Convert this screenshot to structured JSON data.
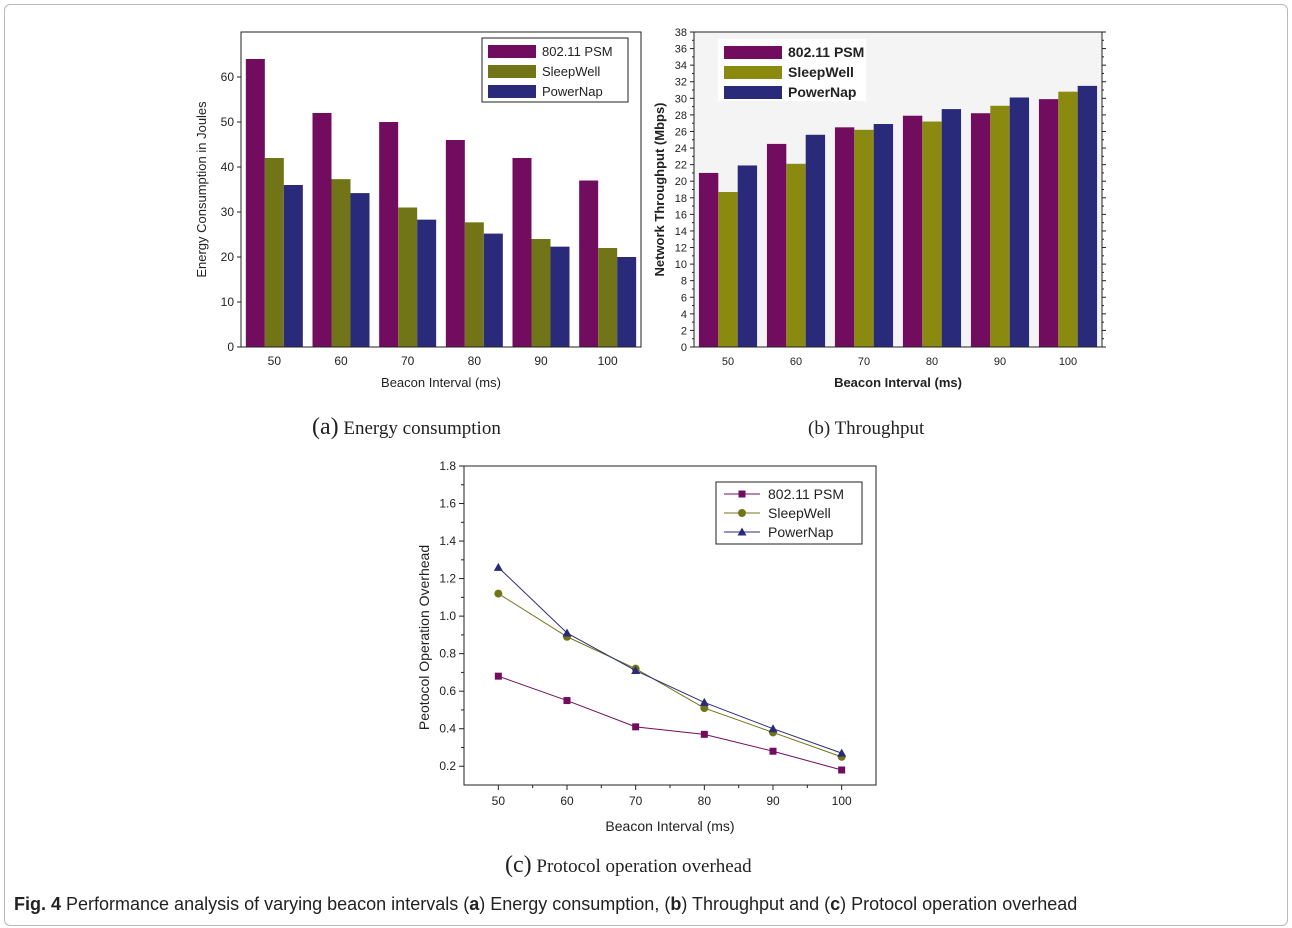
{
  "chart_data": [
    {
      "type": "bar",
      "categories": [
        "50",
        "60",
        "70",
        "80",
        "90",
        "100"
      ],
      "series": [
        {
          "name": "802.11 PSM",
          "values": [
            64,
            52,
            50,
            46,
            42,
            37
          ],
          "color": "#720c5e"
        },
        {
          "name": "SleepWell",
          "values": [
            42,
            37.3,
            31,
            27.7,
            24,
            22
          ],
          "color": "#727517"
        },
        {
          "name": "PowerNap",
          "values": [
            36,
            34.2,
            28.3,
            25.2,
            22.3,
            20
          ],
          "color": "#2a2a7a"
        }
      ],
      "xlabel": "Beacon Interval (ms)",
      "ylabel": "Energy Consumption in Joules",
      "ylim": [
        0,
        70
      ],
      "yticks": [
        "0",
        "10",
        "20",
        "30",
        "40",
        "50",
        "60"
      ],
      "legend": "top-right",
      "subcaption": {
        "letter": "(a)",
        "text": "Energy consumption"
      }
    },
    {
      "type": "bar",
      "categories": [
        "50",
        "60",
        "70",
        "80",
        "90",
        "100"
      ],
      "series": [
        {
          "name": "802.11 PSM",
          "values": [
            21,
            24.5,
            26.5,
            27.9,
            28.2,
            29.9
          ],
          "color": "#720c5e"
        },
        {
          "name": "SleepWell",
          "values": [
            18.7,
            22.1,
            26.2,
            27.2,
            29.1,
            30.8
          ],
          "color": "#8a8a10"
        },
        {
          "name": "PowerNap",
          "values": [
            21.9,
            25.6,
            26.9,
            28.7,
            30.1,
            31.5
          ],
          "color": "#2a2a7a"
        }
      ],
      "xlabel": "Beacon Interval (ms)",
      "ylabel": "Network Throughput (Mbps)",
      "ylim": [
        0,
        38
      ],
      "yticks": [
        "0",
        "2",
        "4",
        "6",
        "8",
        "10",
        "12",
        "14",
        "16",
        "18",
        "20",
        "22",
        "24",
        "26",
        "28",
        "30",
        "32",
        "34",
        "36",
        "38"
      ],
      "legend": "top-left",
      "subcaption": {
        "letter": "(b)",
        "text": "Throughput"
      }
    },
    {
      "type": "line",
      "x": [
        "50",
        "60",
        "70",
        "80",
        "90",
        "100"
      ],
      "series": [
        {
          "name": "802.11 PSM",
          "values": [
            0.68,
            0.55,
            0.41,
            0.37,
            0.28,
            0.18
          ],
          "color": "#720c5e",
          "marker": "square"
        },
        {
          "name": "SleepWell",
          "values": [
            1.12,
            0.89,
            0.72,
            0.51,
            0.38,
            0.25
          ],
          "color": "#727517",
          "marker": "circle"
        },
        {
          "name": "PowerNap",
          "values": [
            1.26,
            0.91,
            0.71,
            0.54,
            0.4,
            0.27
          ],
          "color": "#2a2a7a",
          "marker": "triangle"
        }
      ],
      "xlabel": "Beacon Interval (ms)",
      "ylabel": "Peotocol Operation Overhead",
      "ylim": [
        0.1,
        1.8
      ],
      "yticks": [
        "0.2",
        "0.4",
        "0.6",
        "0.8",
        "1.0",
        "1.2",
        "1.4",
        "1.6",
        "1.8"
      ],
      "legend": "top-right",
      "subcaption": {
        "letter": "(c)",
        "text": "Protocol operation overhead"
      }
    }
  ],
  "caption": {
    "label": "Fig. 4",
    "text_1": " Performance analysis of varying beacon intervals (",
    "a": "a",
    "text_2": ") Energy consumption, (",
    "b": "b",
    "text_3": ") Throughput and (",
    "c": "c",
    "text_4": ") Protocol operation overhead"
  }
}
